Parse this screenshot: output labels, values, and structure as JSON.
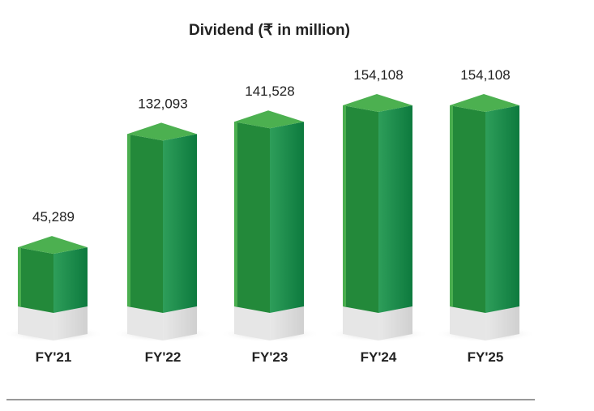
{
  "chart_data": {
    "type": "bar",
    "title": "Dividend (₹ in million)",
    "categories": [
      "FY'21",
      "FY'22",
      "FY'23",
      "FY'24",
      "FY'25"
    ],
    "values": [
      45289,
      132093,
      141528,
      154108,
      154108
    ],
    "value_labels": [
      "45,289",
      "132,093",
      "141,528",
      "154,108",
      "154,108"
    ],
    "xlabel": "",
    "ylabel": "",
    "ylim": [
      0,
      154108
    ],
    "grid": false,
    "colors": {
      "front": "#23893a",
      "side_start": "#2e9e5a",
      "side_end": "#0d7a3e",
      "top": "#4cb050",
      "base": "#dedede"
    }
  }
}
